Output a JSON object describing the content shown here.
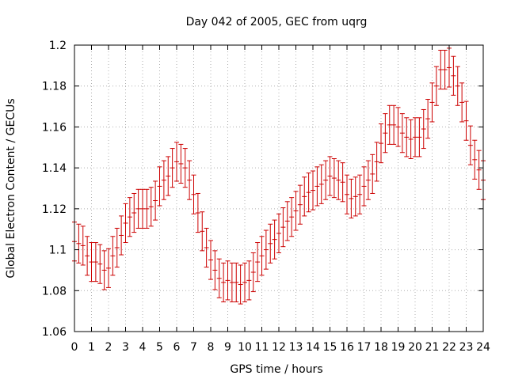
{
  "chart_data": {
    "type": "scatter",
    "title": "Day 042 of 2005, GEC from uqrg",
    "xlabel": "GPS time / hours",
    "ylabel": "Global Electron Content / GECUs",
    "xlim": [
      0,
      24
    ],
    "ylim": [
      1.06,
      1.2
    ],
    "grid": true,
    "error_bar": 0.0095,
    "color": "#cc0000",
    "x_ticks": [
      0,
      1,
      2,
      3,
      4,
      5,
      6,
      7,
      8,
      9,
      10,
      11,
      12,
      13,
      14,
      15,
      16,
      17,
      18,
      19,
      20,
      21,
      22,
      23,
      24
    ],
    "x_tick_labels": [
      "0",
      "1",
      "2",
      "3",
      "4",
      "5",
      "6",
      "7",
      "8",
      "9",
      "10",
      "11",
      "12",
      "13",
      "14",
      "15",
      "16",
      "17",
      "18",
      "19",
      "20",
      "21",
      "22",
      "23",
      "24"
    ],
    "y_ticks": [
      1.06,
      1.08,
      1.1,
      1.12,
      1.14,
      1.16,
      1.18,
      1.2
    ],
    "y_tick_labels": [
      "1.06",
      "1.08",
      "1.1",
      "1.12",
      "1.14",
      "1.16",
      "1.18",
      "1.2"
    ],
    "series": [
      {
        "x": [
          0,
          0.25,
          0.5,
          0.75,
          1,
          1.25,
          1.5,
          1.75,
          2,
          2.25,
          2.5,
          2.75,
          3,
          3.25,
          3.5,
          3.75,
          4,
          4.25,
          4.5,
          4.75,
          5,
          5.25,
          5.5,
          5.75,
          6,
          6.25,
          6.5,
          6.75,
          7,
          7.25,
          7.5,
          7.75,
          8,
          8.25,
          8.5,
          8.75,
          9,
          9.25,
          9.5,
          9.75,
          10,
          10.25,
          10.5,
          10.75,
          11,
          11.25,
          11.5,
          11.75,
          12,
          12.25,
          12.5,
          12.75,
          13,
          13.25,
          13.5,
          13.75,
          14,
          14.25,
          14.5,
          14.75,
          15,
          15.25,
          15.5,
          15.75,
          16,
          16.25,
          16.5,
          16.75,
          17,
          17.25,
          17.5,
          17.75,
          18,
          18.25,
          18.5,
          18.75,
          19,
          19.25,
          19.5,
          19.75,
          20,
          20.25,
          20.5,
          20.75,
          21,
          21.25,
          21.5,
          21.75,
          22,
          22.25,
          22.5,
          22.75,
          23,
          23.25,
          23.5,
          23.75,
          24
        ],
        "y": [
          1.104,
          1.103,
          1.102,
          1.097,
          1.094,
          1.094,
          1.093,
          1.09,
          1.091,
          1.097,
          1.101,
          1.107,
          1.113,
          1.116,
          1.118,
          1.12,
          1.12,
          1.12,
          1.121,
          1.124,
          1.131,
          1.134,
          1.136,
          1.14,
          1.143,
          1.142,
          1.14,
          1.134,
          1.127,
          1.118,
          1.109,
          1.101,
          1.095,
          1.09,
          1.086,
          1.084,
          1.085,
          1.084,
          1.084,
          1.083,
          1.084,
          1.085,
          1.089,
          1.094,
          1.097,
          1.1,
          1.103,
          1.105,
          1.108,
          1.111,
          1.114,
          1.116,
          1.119,
          1.122,
          1.126,
          1.128,
          1.129,
          1.131,
          1.132,
          1.134,
          1.136,
          1.135,
          1.134,
          1.133,
          1.127,
          1.125,
          1.126,
          1.127,
          1.131,
          1.134,
          1.137,
          1.143,
          1.152,
          1.157,
          1.161,
          1.161,
          1.16,
          1.157,
          1.155,
          1.154,
          1.155,
          1.155,
          1.159,
          1.164,
          1.172,
          1.18,
          1.188,
          1.188,
          1.189,
          1.185,
          1.18,
          1.172,
          1.163,
          1.151,
          1.144,
          1.139,
          1.134
        ]
      }
    ]
  }
}
